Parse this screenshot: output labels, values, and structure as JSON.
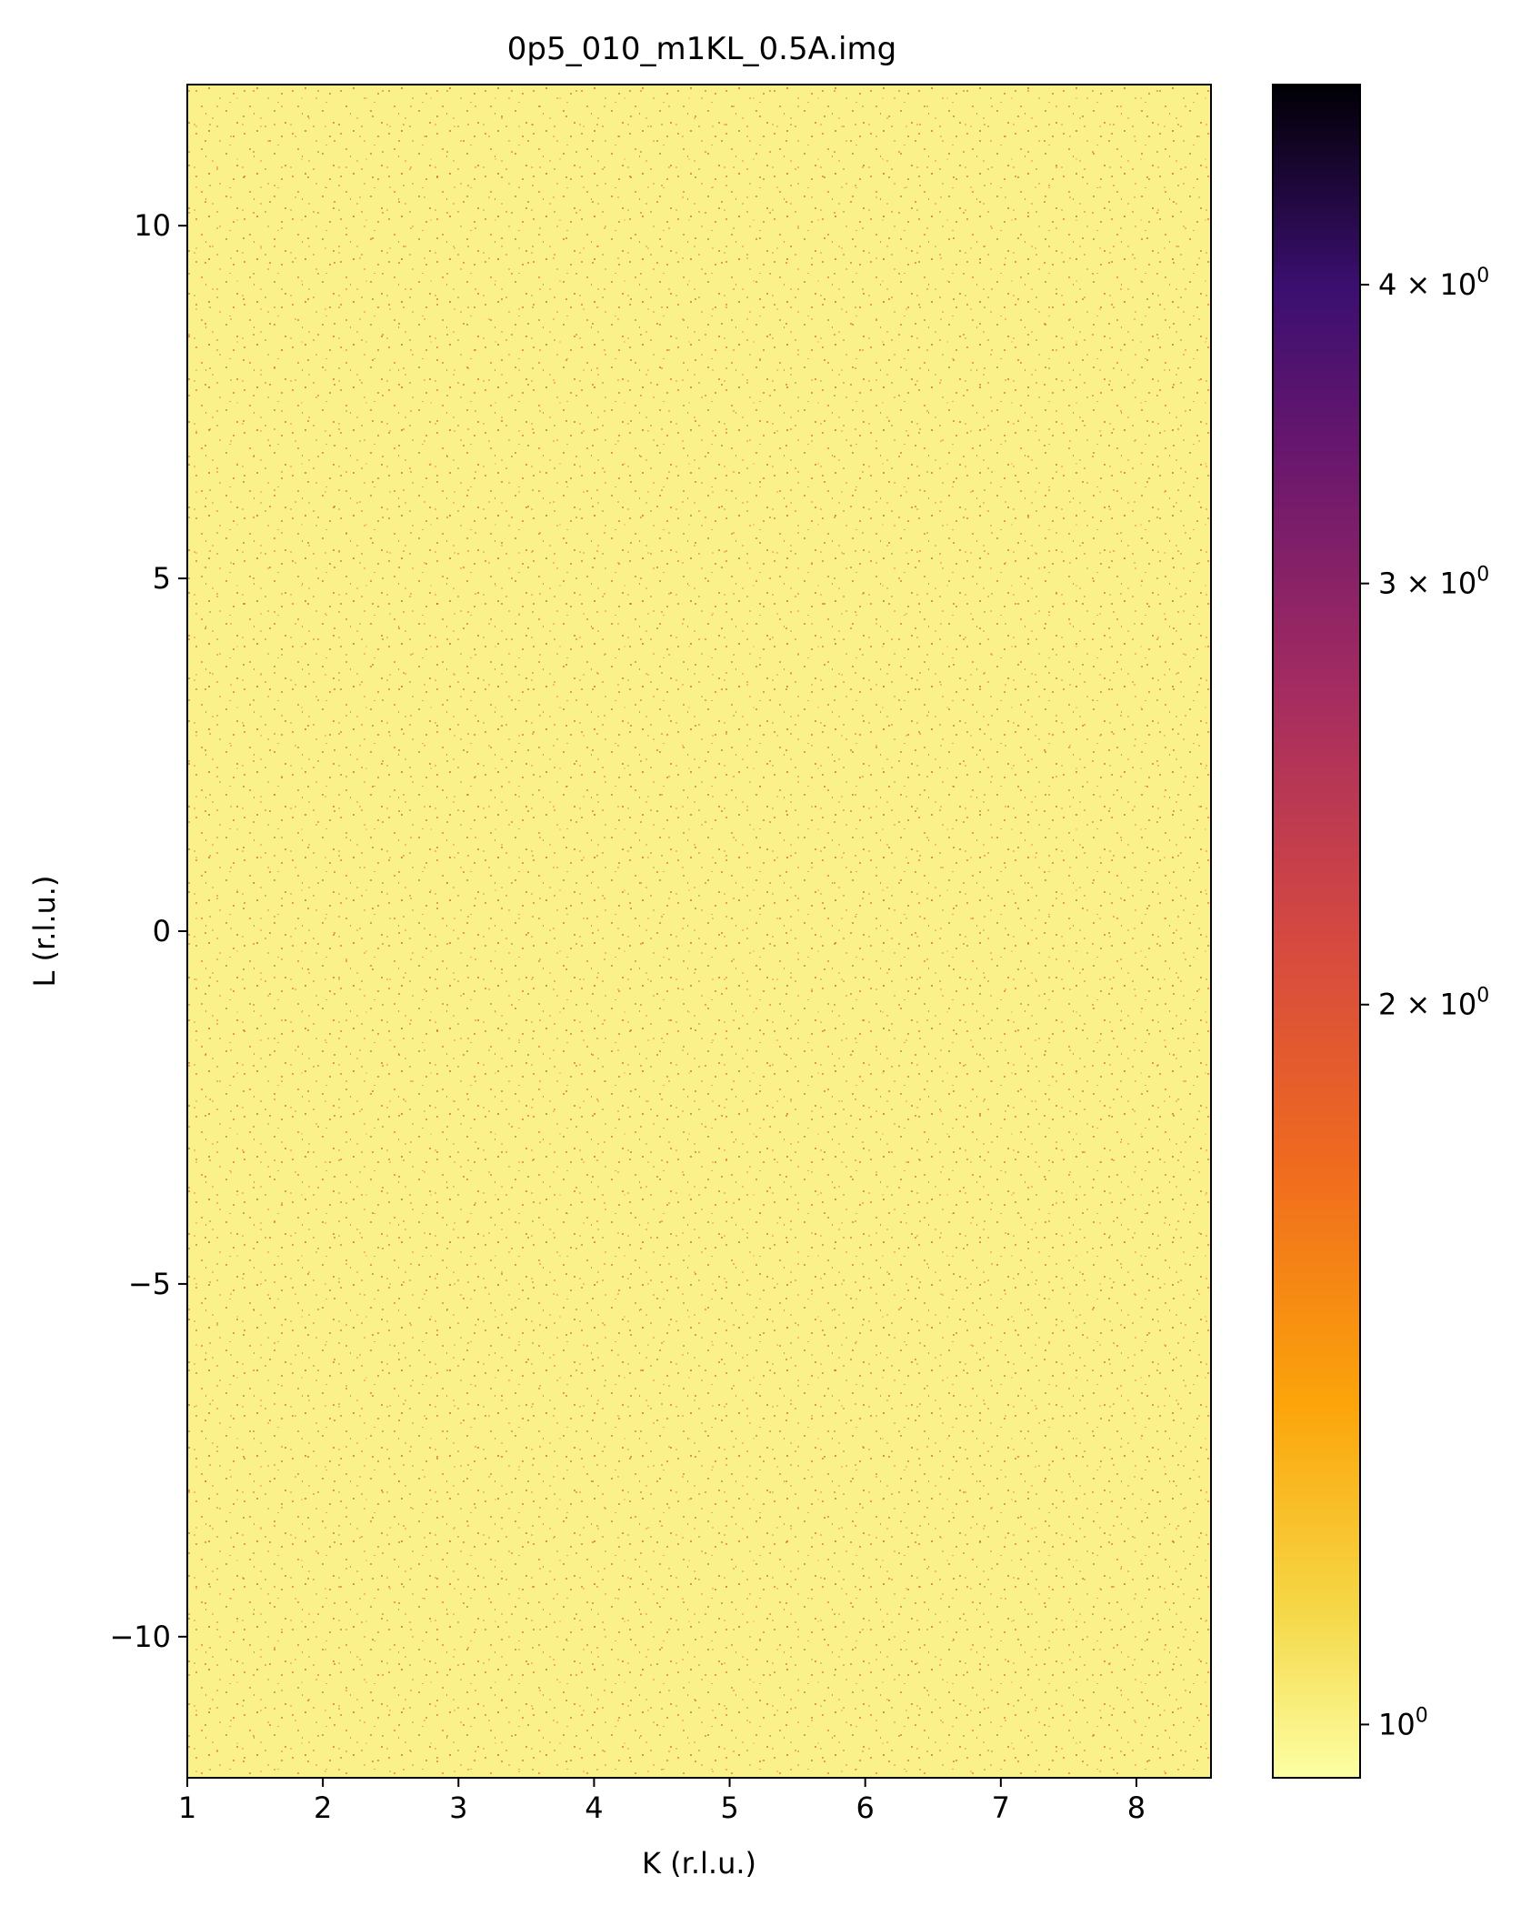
{
  "chart_data": {
    "type": "heatmap",
    "title": "0p5_010_m1KL_0.5A.img",
    "xlabel": "K (r.l.u.)",
    "ylabel": "L (r.l.u.)",
    "xlim": [
      1.0,
      8.55
    ],
    "ylim": [
      -12.0,
      12.0
    ],
    "x_ticks": [
      1,
      2,
      3,
      4,
      5,
      6,
      7,
      8
    ],
    "x_tick_labels": [
      "1",
      "2",
      "3",
      "4",
      "5",
      "6",
      "7",
      "8"
    ],
    "y_ticks": [
      -10,
      -5,
      0,
      5,
      10
    ],
    "y_tick_labels": [
      "−10",
      "−5",
      "0",
      "5",
      "10"
    ],
    "colormap": "inferno_r",
    "color_scale": "log",
    "colorbar": {
      "range": [
        0.95,
        4.85
      ],
      "ticks": [
        {
          "value": 1,
          "base": "10",
          "exp": "0"
        },
        {
          "value": 2,
          "base": "2 × 10",
          "exp": "0"
        },
        {
          "value": 3,
          "base": "3 × 10",
          "exp": "0"
        },
        {
          "value": 4,
          "base": "4 × 10",
          "exp": "0"
        }
      ],
      "minor_ticks": [
        5,
        6,
        7,
        8,
        9
      ]
    },
    "data_description_values": {
      "background_value": 1,
      "fraction_of_pixels_above_background": 0.12,
      "max_value": 2
    }
  }
}
